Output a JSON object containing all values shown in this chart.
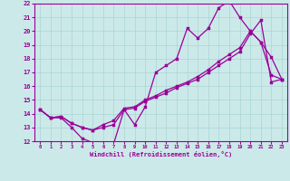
{
  "title": "",
  "xlabel": "Windchill (Refroidissement éolien,°C)",
  "bg_color": "#cce9e9",
  "line_color": "#990099",
  "grid_color": "#aad4d4",
  "xlim": [
    -0.5,
    23.5
  ],
  "ylim": [
    12,
    22
  ],
  "xticks": [
    0,
    1,
    2,
    3,
    4,
    5,
    6,
    7,
    8,
    9,
    10,
    11,
    12,
    13,
    14,
    15,
    16,
    17,
    18,
    19,
    20,
    21,
    22,
    23
  ],
  "yticks": [
    12,
    13,
    14,
    15,
    16,
    17,
    18,
    19,
    20,
    21,
    22
  ],
  "line1_x": [
    0,
    1,
    2,
    3,
    4,
    5,
    6,
    7,
    8,
    9,
    10,
    11,
    12,
    13,
    14,
    15,
    16,
    17,
    18,
    19,
    20,
    21,
    22,
    23
  ],
  "line1_y": [
    14.3,
    13.7,
    13.7,
    13.0,
    12.2,
    11.9,
    11.9,
    11.8,
    14.3,
    13.2,
    14.5,
    17.0,
    17.5,
    18.0,
    20.2,
    19.5,
    20.2,
    21.7,
    22.2,
    21.0,
    20.0,
    19.2,
    18.1,
    16.5
  ],
  "line2_x": [
    0,
    1,
    2,
    3,
    4,
    5,
    6,
    7,
    8,
    9,
    10,
    11,
    12,
    13,
    14,
    15,
    16,
    17,
    18,
    19,
    20,
    21,
    22,
    23
  ],
  "line2_y": [
    14.3,
    13.7,
    13.8,
    13.3,
    13.0,
    12.8,
    13.0,
    13.2,
    14.3,
    14.4,
    14.9,
    15.2,
    15.5,
    15.9,
    16.2,
    16.5,
    17.0,
    17.5,
    18.0,
    18.5,
    19.8,
    20.8,
    16.3,
    16.5
  ],
  "line3_x": [
    0,
    1,
    2,
    3,
    4,
    5,
    6,
    7,
    8,
    9,
    10,
    11,
    12,
    13,
    14,
    15,
    16,
    17,
    18,
    19,
    20,
    21,
    22,
    23
  ],
  "line3_y": [
    14.3,
    13.7,
    13.8,
    13.3,
    13.0,
    12.8,
    13.2,
    13.5,
    14.4,
    14.5,
    15.0,
    15.3,
    15.7,
    16.0,
    16.3,
    16.7,
    17.2,
    17.8,
    18.3,
    18.8,
    20.0,
    19.2,
    16.8,
    16.5
  ],
  "markersize": 2.5,
  "linewidth": 0.9
}
